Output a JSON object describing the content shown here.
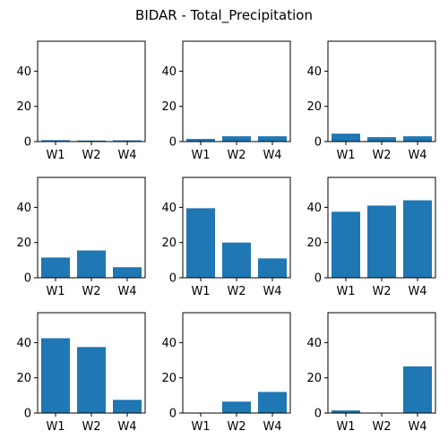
{
  "figure": {
    "title": "BIDAR - Total_Precipitation"
  },
  "chart_data": [
    {
      "type": "bar",
      "categories": [
        "W1",
        "W2",
        "W4"
      ],
      "values": [
        0.8,
        0.6,
        0.7
      ],
      "ylim": [
        0,
        57
      ],
      "yticks": [
        0,
        20,
        40
      ],
      "color": "#1f77b4"
    },
    {
      "type": "bar",
      "categories": [
        "W1",
        "W2",
        "W4"
      ],
      "values": [
        1.5,
        3.0,
        3.0
      ],
      "ylim": [
        0,
        57
      ],
      "yticks": [
        0,
        20,
        40
      ],
      "color": "#1f77b4"
    },
    {
      "type": "bar",
      "categories": [
        "W1",
        "W2",
        "W4"
      ],
      "values": [
        4.5,
        2.5,
        3.0
      ],
      "ylim": [
        0,
        57
      ],
      "yticks": [
        0,
        20,
        40
      ],
      "color": "#1f77b4"
    },
    {
      "type": "bar",
      "categories": [
        "W1",
        "W2",
        "W4"
      ],
      "values": [
        11.5,
        15.5,
        6.0
      ],
      "ylim": [
        0,
        57
      ],
      "yticks": [
        0,
        20,
        40
      ],
      "color": "#1f77b4"
    },
    {
      "type": "bar",
      "categories": [
        "W1",
        "W2",
        "W4"
      ],
      "values": [
        39.5,
        20.0,
        11.0
      ],
      "ylim": [
        0,
        57
      ],
      "yticks": [
        0,
        20,
        40
      ],
      "color": "#1f77b4"
    },
    {
      "type": "bar",
      "categories": [
        "W1",
        "W2",
        "W4"
      ],
      "values": [
        37.5,
        41.0,
        44.0
      ],
      "ylim": [
        0,
        57
      ],
      "yticks": [
        0,
        20,
        40
      ],
      "color": "#1f77b4"
    },
    {
      "type": "bar",
      "categories": [
        "W1",
        "W2",
        "W4"
      ],
      "values": [
        42.5,
        37.5,
        7.5
      ],
      "ylim": [
        0,
        57
      ],
      "yticks": [
        0,
        20,
        40
      ],
      "color": "#1f77b4"
    },
    {
      "type": "bar",
      "categories": [
        "W1",
        "W2",
        "W4"
      ],
      "values": [
        0,
        6.5,
        12.0
      ],
      "ylim": [
        0,
        57
      ],
      "yticks": [
        0,
        20,
        40
      ],
      "color": "#1f77b4"
    },
    {
      "type": "bar",
      "categories": [
        "W1",
        "W2",
        "W4"
      ],
      "values": [
        1.5,
        0,
        26.5
      ],
      "ylim": [
        0,
        57
      ],
      "yticks": [
        0,
        20,
        40
      ],
      "color": "#1f77b4"
    }
  ]
}
